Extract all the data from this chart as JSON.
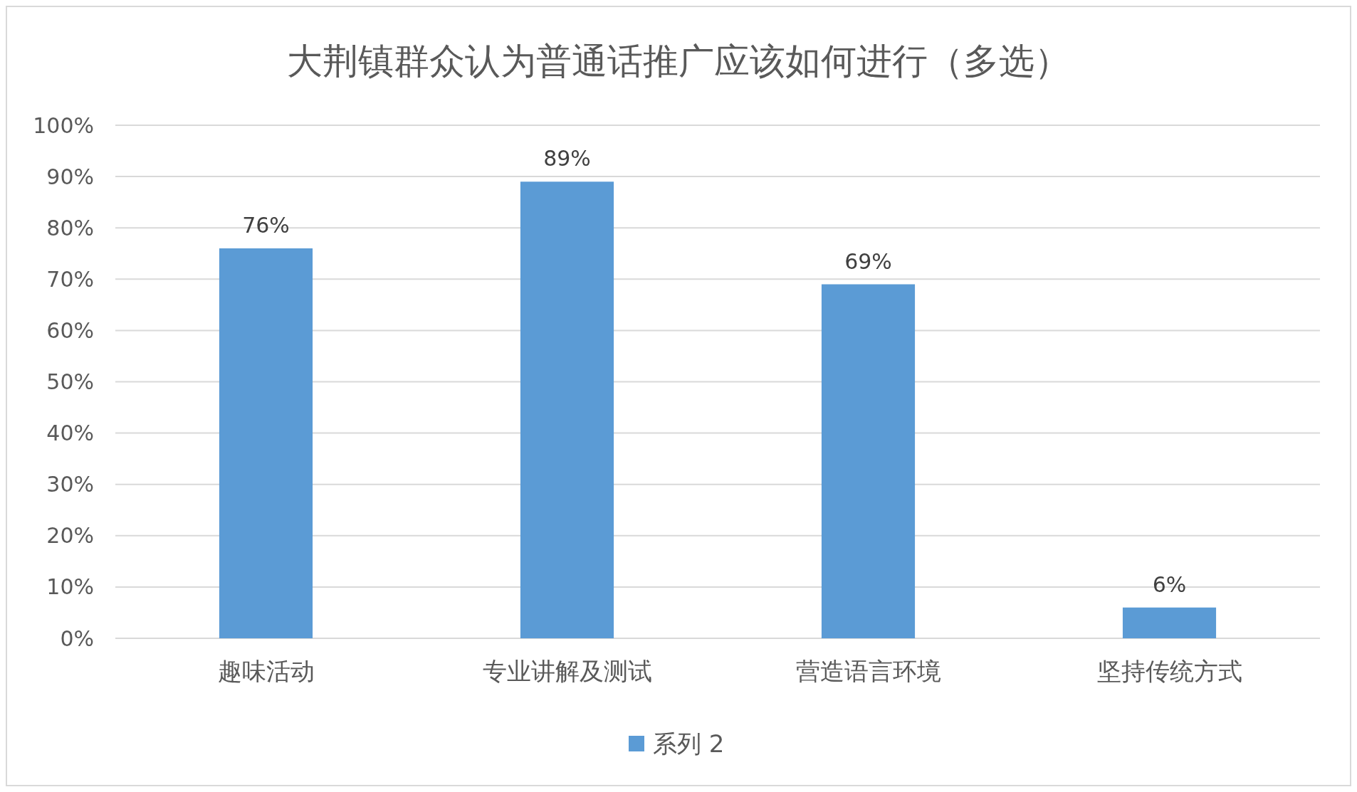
{
  "chart_data": {
    "type": "bar",
    "title": "大荆镇群众认为普通话推广应该如何进行（多选）",
    "categories": [
      "趣味活动",
      "专业讲解及测试",
      "营造语言环境",
      "坚持传统方式"
    ],
    "series": [
      {
        "name": "系列 2",
        "color": "#5b9bd5",
        "values": [
          76,
          89,
          69,
          6
        ],
        "value_labels": [
          "76%",
          "89%",
          "69%",
          "6%"
        ]
      }
    ],
    "ylim": [
      0,
      100
    ],
    "yticks": [
      {
        "value": 0,
        "label": "0%"
      },
      {
        "value": 10,
        "label": "10%"
      },
      {
        "value": 20,
        "label": "20%"
      },
      {
        "value": 30,
        "label": "30%"
      },
      {
        "value": 40,
        "label": "40%"
      },
      {
        "value": 50,
        "label": "50%"
      },
      {
        "value": 60,
        "label": "60%"
      },
      {
        "value": 70,
        "label": "70%"
      },
      {
        "value": 80,
        "label": "80%"
      },
      {
        "value": 90,
        "label": "90%"
      },
      {
        "value": 100,
        "label": "100%"
      }
    ],
    "grid": "y",
    "legend": "bottom"
  }
}
